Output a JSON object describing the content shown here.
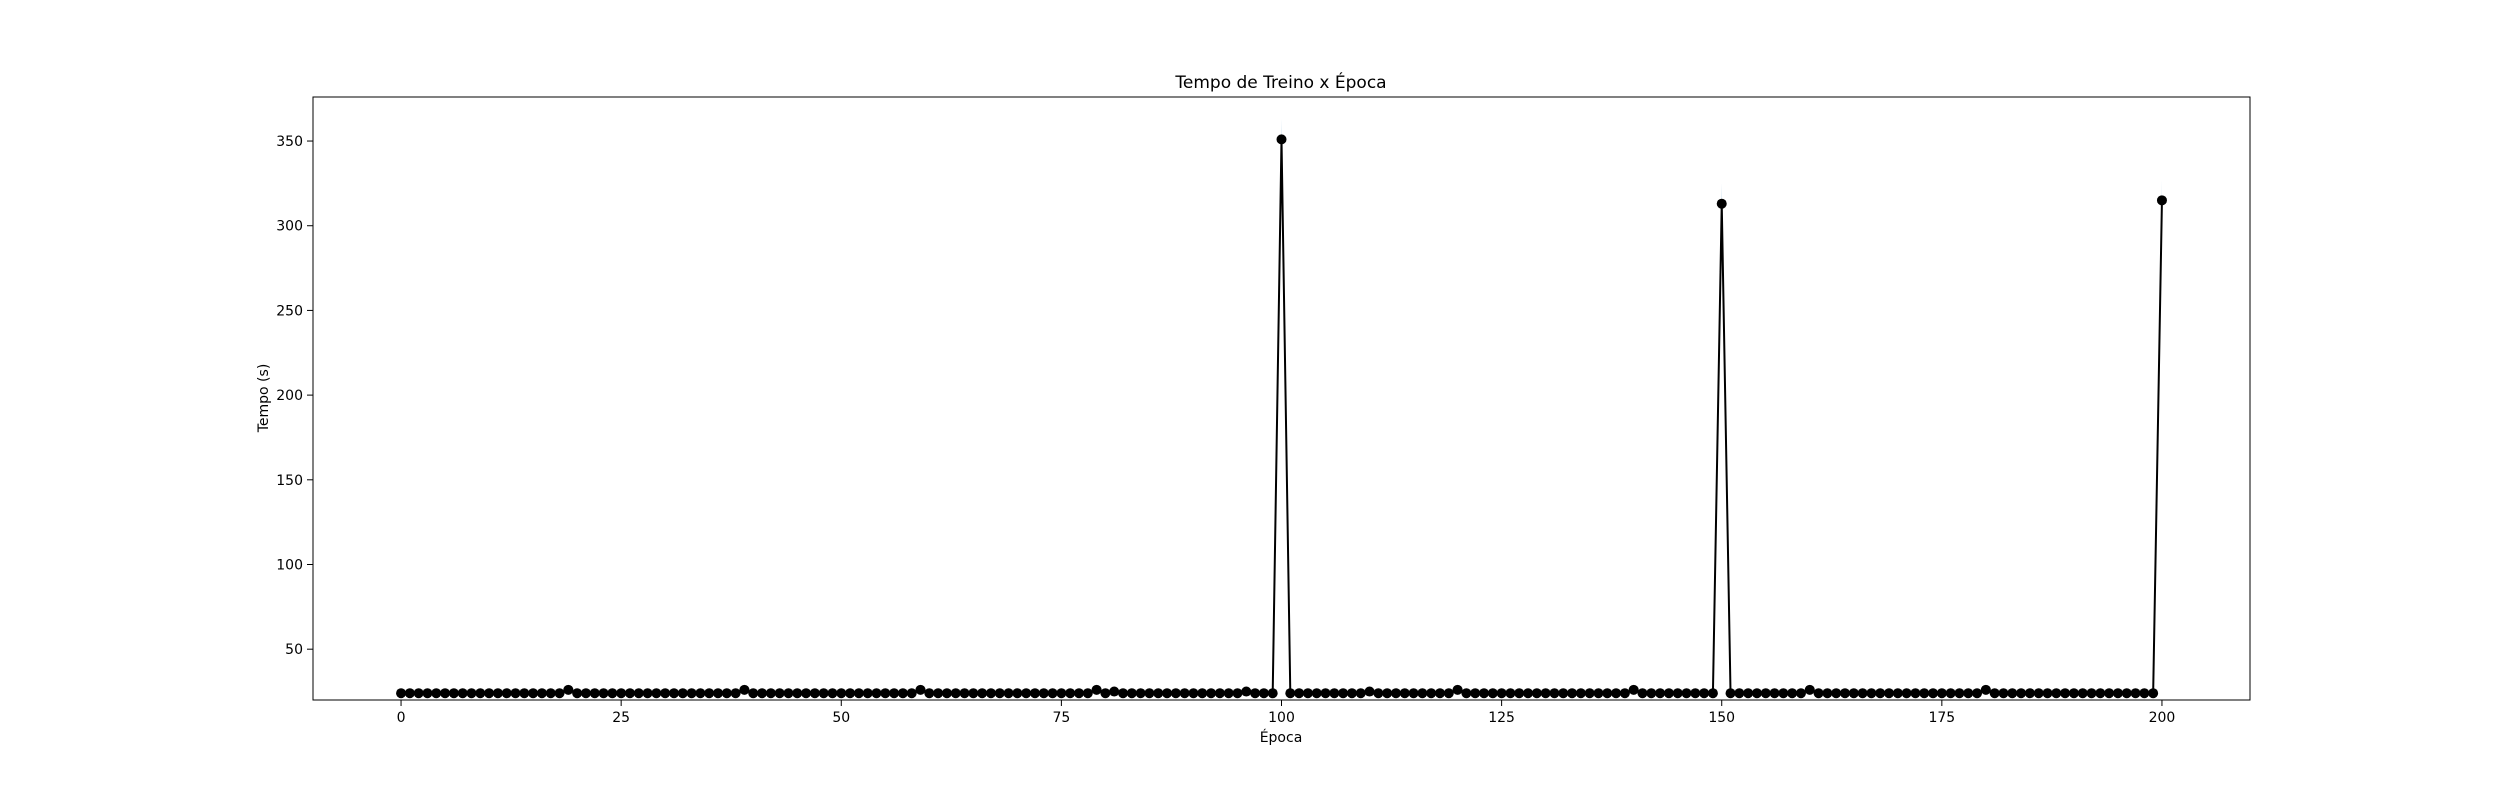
{
  "chart_data": {
    "type": "line",
    "title": "Tempo de Treino x Época",
    "xlabel": "Época",
    "ylabel": "Tempo (s)",
    "xlim": [
      -10,
      210
    ],
    "ylim": [
      20,
      376
    ],
    "xticks": [
      0,
      25,
      50,
      75,
      100,
      125,
      150,
      175,
      200
    ],
    "yticks": [
      50,
      100,
      150,
      200,
      250,
      300,
      350
    ],
    "grid": false,
    "colors": {
      "line": "#000000",
      "marker": "#000000",
      "band": "#1f77b4"
    },
    "series": [
      {
        "x": [
          0,
          1,
          2,
          3,
          4,
          5,
          6,
          7,
          8,
          9,
          10,
          11,
          12,
          13,
          14,
          15,
          16,
          17,
          18,
          19,
          20,
          21,
          22,
          23,
          24,
          25,
          26,
          27,
          28,
          29,
          30,
          31,
          32,
          33,
          34,
          35,
          36,
          37,
          38,
          39,
          40,
          41,
          42,
          43,
          44,
          45,
          46,
          47,
          48,
          49,
          50,
          51,
          52,
          53,
          54,
          55,
          56,
          57,
          58,
          59,
          60,
          61,
          62,
          63,
          64,
          65,
          66,
          67,
          68,
          69,
          70,
          71,
          72,
          73,
          74,
          75,
          76,
          77,
          78,
          79,
          80,
          81,
          82,
          83,
          84,
          85,
          86,
          87,
          88,
          89,
          90,
          91,
          92,
          93,
          94,
          95,
          96,
          97,
          98,
          99,
          100,
          101,
          102,
          103,
          104,
          105,
          106,
          107,
          108,
          109,
          110,
          111,
          112,
          113,
          114,
          115,
          116,
          117,
          118,
          119,
          120,
          121,
          122,
          123,
          124,
          125,
          126,
          127,
          128,
          129,
          130,
          131,
          132,
          133,
          134,
          135,
          136,
          137,
          138,
          139,
          140,
          141,
          142,
          143,
          144,
          145,
          146,
          147,
          148,
          149,
          150,
          151,
          152,
          153,
          154,
          155,
          156,
          157,
          158,
          159,
          160,
          161,
          162,
          163,
          164,
          165,
          166,
          167,
          168,
          169,
          170,
          171,
          172,
          173,
          174,
          175,
          176,
          177,
          178,
          179,
          180,
          181,
          182,
          183,
          184,
          185,
          186,
          187,
          188,
          189,
          190,
          191,
          192,
          193,
          194,
          195,
          196,
          197,
          198,
          199,
          200
        ],
        "y": [
          24,
          24,
          24,
          24,
          24,
          24,
          24,
          24,
          24,
          24,
          24,
          24,
          24,
          24,
          24,
          24,
          24,
          24,
          24,
          26,
          24,
          24,
          24,
          24,
          24,
          24,
          24,
          24,
          24,
          24,
          24,
          24,
          24,
          24,
          24,
          24,
          24,
          24,
          24,
          26,
          24,
          24,
          24,
          24,
          24,
          24,
          24,
          24,
          24,
          24,
          24,
          24,
          24,
          24,
          24,
          24,
          24,
          24,
          24,
          26,
          24,
          24,
          24,
          24,
          24,
          24,
          24,
          24,
          24,
          24,
          24,
          24,
          24,
          24,
          24,
          24,
          24,
          24,
          24,
          26,
          24,
          25,
          24,
          24,
          24,
          24,
          24,
          24,
          24,
          24,
          24,
          24,
          24,
          24,
          24,
          24,
          25,
          24,
          24,
          24,
          351,
          24,
          24,
          24,
          24,
          24,
          24,
          24,
          24,
          24,
          25,
          24,
          24,
          24,
          24,
          24,
          24,
          24,
          24,
          24,
          26,
          24,
          24,
          24,
          24,
          24,
          24,
          24,
          24,
          24,
          24,
          24,
          24,
          24,
          24,
          24,
          24,
          24,
          24,
          24,
          26,
          24,
          24,
          24,
          24,
          24,
          24,
          24,
          24,
          24,
          313,
          24,
          24,
          24,
          24,
          24,
          24,
          24,
          24,
          24,
          26,
          24,
          24,
          24,
          24,
          24,
          24,
          24,
          24,
          24,
          24,
          24,
          24,
          24,
          24,
          24,
          24,
          24,
          24,
          24,
          26,
          24,
          24,
          24,
          24,
          24,
          24,
          24,
          24,
          24,
          24,
          24,
          24,
          24,
          24,
          24,
          24,
          24,
          24,
          24,
          315
        ]
      }
    ]
  }
}
